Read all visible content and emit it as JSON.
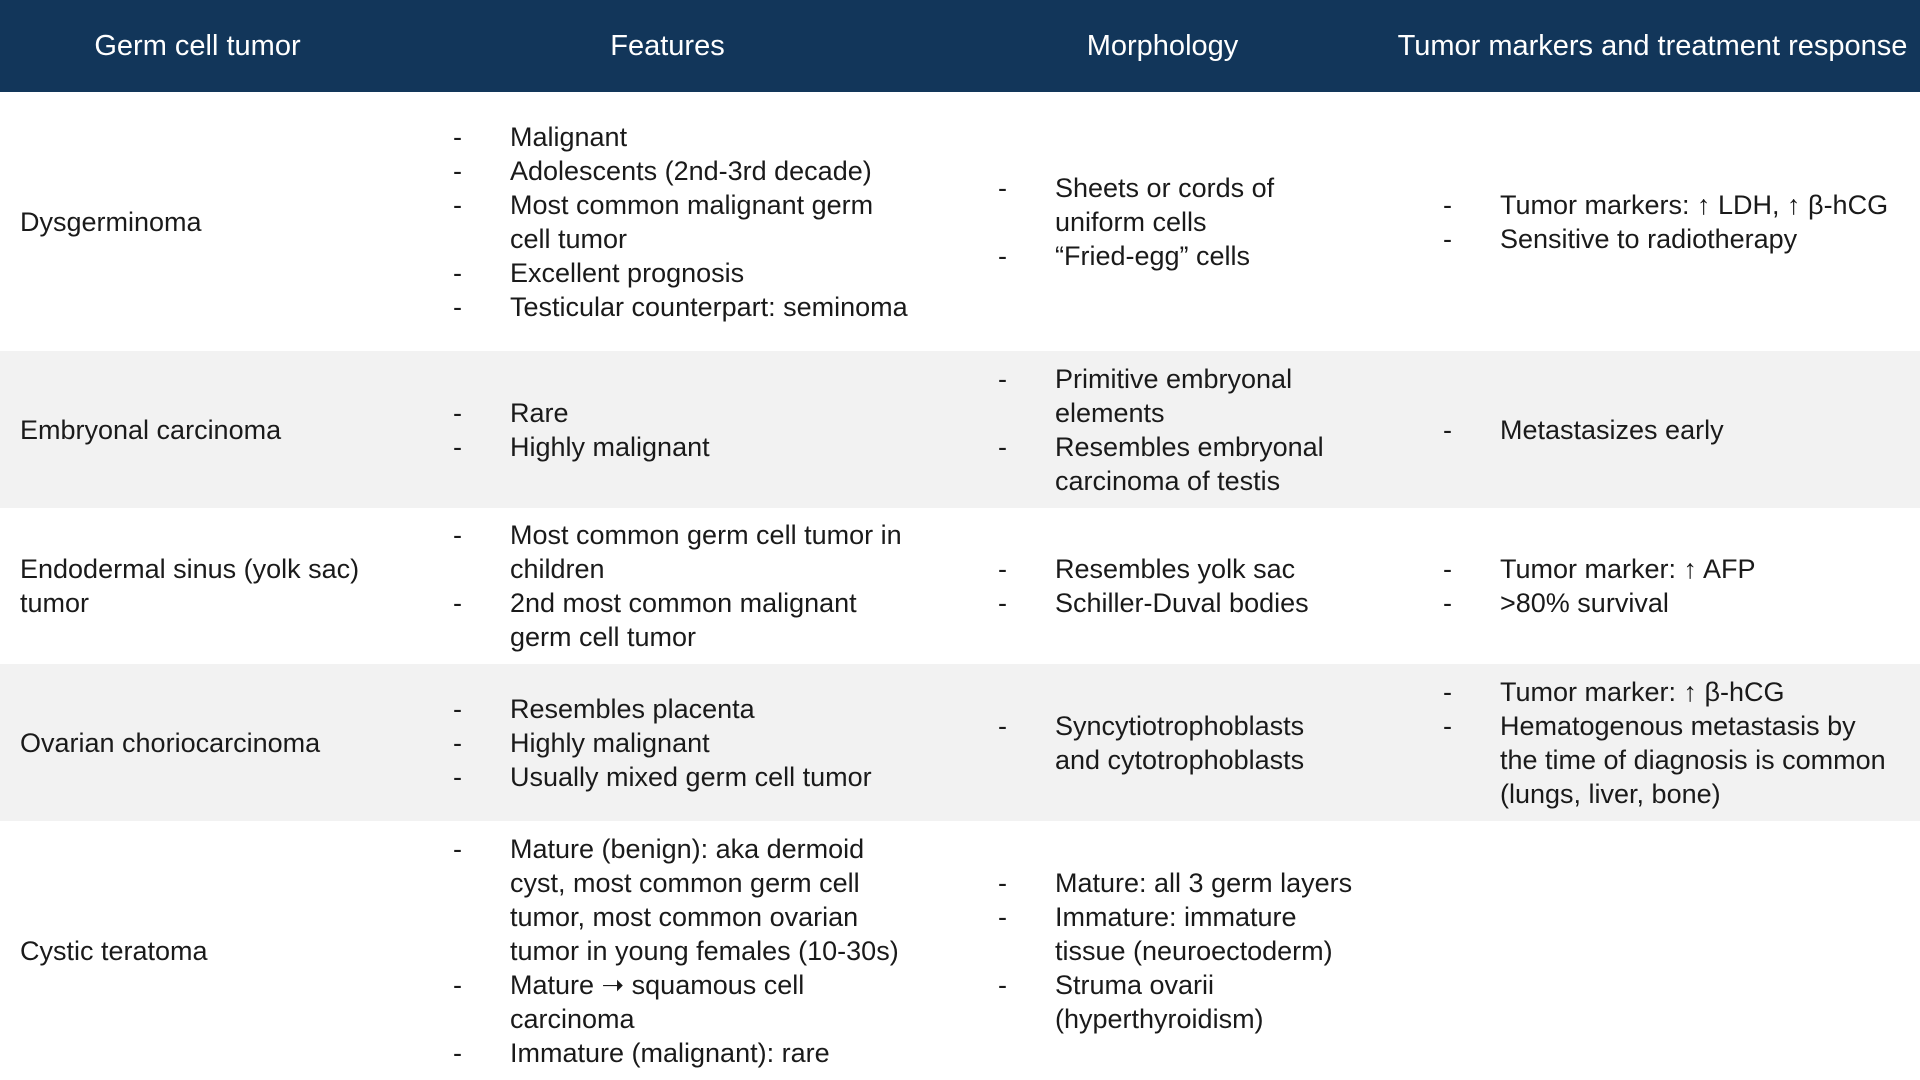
{
  "headers": [
    "Germ cell tumor",
    "Features",
    "Morphology",
    "Tumor markers and treatment response"
  ],
  "rows": [
    {
      "name": "Dysgerminoma",
      "features": [
        "Malignant",
        "Adolescents (2nd-3rd decade)",
        "Most common malignant germ cell tumor",
        "Excellent prognosis",
        "Testicular counterpart: seminoma"
      ],
      "morphology": [
        "Sheets or cords of uniform cells",
        "“Fried-egg” cells"
      ],
      "markers": [
        "Tumor markers: ↑ LDH, ↑ β-hCG",
        "Sensitive to radiotherapy"
      ]
    },
    {
      "name": "Embryonal carcinoma",
      "features": [
        "Rare",
        "Highly malignant"
      ],
      "morphology": [
        "Primitive embryonal elements",
        "Resembles embryonal carcinoma of testis"
      ],
      "markers": [
        "Metastasizes early"
      ]
    },
    {
      "name": "Endodermal sinus (yolk sac) tumor",
      "features": [
        "Most common germ cell tumor in children",
        "2nd most common malignant germ cell tumor"
      ],
      "morphology": [
        "Resembles yolk sac",
        "Schiller-Duval bodies"
      ],
      "markers": [
        "Tumor marker: ↑ AFP",
        ">80% survival"
      ]
    },
    {
      "name": "Ovarian choriocarcinoma",
      "features": [
        "Resembles placenta",
        "Highly malignant",
        "Usually mixed germ cell tumor"
      ],
      "morphology": [
        "Syncytiotrophoblasts and cytotrophoblasts"
      ],
      "markers": [
        "Tumor marker: ↑ β-hCG",
        "Hematogenous metastasis by the time of diagnosis is common (lungs, liver, bone)"
      ]
    },
    {
      "name": "Cystic teratoma",
      "features": [
        "Mature (benign): aka dermoid cyst, most common germ cell tumor, most common ovarian tumor in young females (10-30s)",
        "Mature ➝ squamous cell carcinoma",
        "Immature (malignant): rare"
      ],
      "morphology": [
        "Mature: all 3 germ layers",
        "Immature: immature tissue (neuroectoderm)",
        "Struma ovarii (hyperthyroidism)"
      ],
      "markers": []
    }
  ],
  "bullet_marker": "-",
  "colors": {
    "header_bg": "#12365a",
    "header_text": "#ffffff",
    "alt_row_bg": "#f2f2f2"
  }
}
